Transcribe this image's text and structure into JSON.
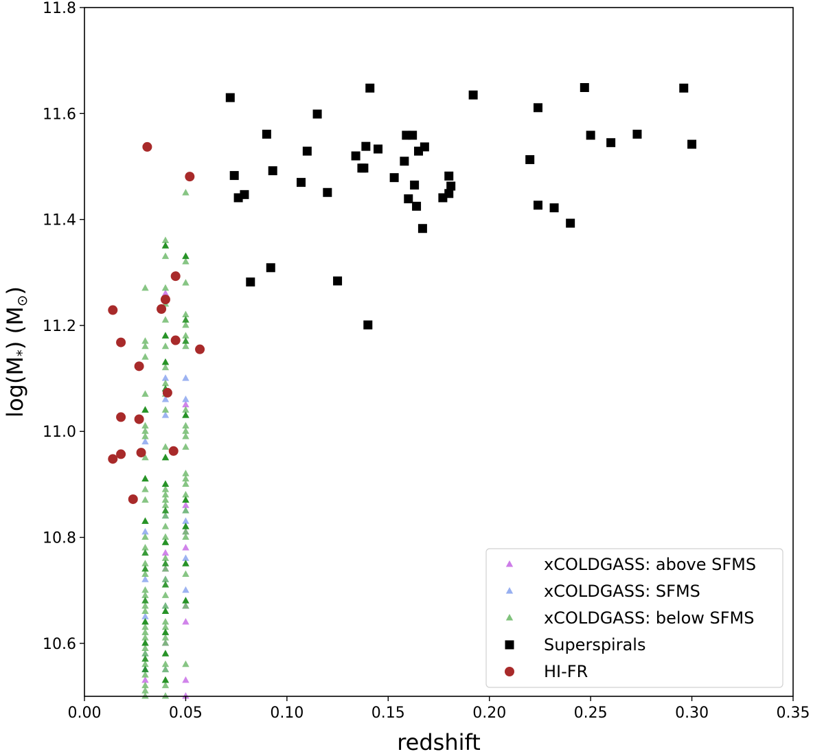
{
  "chart_data": {
    "type": "scatter",
    "xlabel": "redshift",
    "ylabel_parts": [
      "log(M",
      "*",
      ") (M",
      "⊙",
      ")"
    ],
    "xlim": [
      0.0,
      0.35
    ],
    "ylim": [
      10.5,
      11.8
    ],
    "xticks": [
      "0.00",
      "0.05",
      "0.10",
      "0.15",
      "0.20",
      "0.25",
      "0.30",
      "0.35"
    ],
    "yticks": [
      "10.6",
      "10.8",
      "11.0",
      "11.2",
      "11.4",
      "11.6",
      "11.8"
    ],
    "legend_position": "lower-right",
    "colors": {
      "above": "#c86ee6",
      "sfms": "#8ca6ee",
      "below_light": "#72bb6e",
      "below_dark": "#168a16",
      "superspirals": "#000000",
      "hifr": "#a82a2a"
    },
    "series": [
      {
        "name": "xCOLDGASS: above SFMS",
        "marker": "triangle",
        "color": "#c86ee6",
        "points": [
          [
            0.04,
            11.26
          ],
          [
            0.05,
            11.05
          ],
          [
            0.05,
            10.86
          ],
          [
            0.05,
            10.78
          ],
          [
            0.05,
            10.67
          ],
          [
            0.05,
            10.64
          ],
          [
            0.05,
            10.53
          ],
          [
            0.05,
            10.5
          ],
          [
            0.04,
            10.77
          ],
          [
            0.04,
            10.6
          ],
          [
            0.03,
            10.53
          ],
          [
            0.04,
            10.74
          ],
          [
            0.05,
            10.81
          ]
        ]
      },
      {
        "name": "xCOLDGASS: SFMS",
        "marker": "triangle",
        "color": "#8ca6ee",
        "points": [
          [
            0.05,
            11.1
          ],
          [
            0.04,
            11.1
          ],
          [
            0.04,
            11.03
          ],
          [
            0.03,
            10.98
          ],
          [
            0.05,
            10.85
          ],
          [
            0.05,
            10.83
          ],
          [
            0.05,
            10.76
          ],
          [
            0.05,
            10.7
          ],
          [
            0.04,
            10.72
          ],
          [
            0.04,
            10.67
          ],
          [
            0.04,
            10.55
          ],
          [
            0.03,
            10.81
          ],
          [
            0.03,
            10.72
          ],
          [
            0.03,
            10.58
          ],
          [
            0.03,
            10.55
          ],
          [
            0.05,
            11.06
          ],
          [
            0.04,
            11.06
          ],
          [
            0.04,
            10.84
          ],
          [
            0.03,
            10.65
          ]
        ]
      },
      {
        "name": "xCOLDGASS: below SFMS",
        "marker": "triangle",
        "color": "#72bb6e",
        "points": [
          [
            0.05,
            11.45
          ],
          [
            0.04,
            11.36
          ],
          [
            0.04,
            11.35
          ],
          [
            0.04,
            11.33
          ],
          [
            0.05,
            11.33
          ],
          [
            0.05,
            11.32
          ],
          [
            0.05,
            11.28
          ],
          [
            0.03,
            11.27
          ],
          [
            0.04,
            11.27
          ],
          [
            0.04,
            11.24
          ],
          [
            0.05,
            11.22
          ],
          [
            0.05,
            11.2
          ],
          [
            0.04,
            11.21
          ],
          [
            0.05,
            11.18
          ],
          [
            0.04,
            11.18
          ],
          [
            0.03,
            11.17
          ],
          [
            0.03,
            11.16
          ],
          [
            0.04,
            11.16
          ],
          [
            0.05,
            11.16
          ],
          [
            0.03,
            11.14
          ],
          [
            0.04,
            11.13
          ],
          [
            0.04,
            11.12
          ],
          [
            0.04,
            11.09
          ],
          [
            0.04,
            11.07
          ],
          [
            0.03,
            11.07
          ],
          [
            0.05,
            11.04
          ],
          [
            0.03,
            11.04
          ],
          [
            0.04,
            11.04
          ],
          [
            0.05,
            11.03
          ],
          [
            0.03,
            11.01
          ],
          [
            0.05,
            11.01
          ],
          [
            0.03,
            11.0
          ],
          [
            0.05,
            11.0
          ],
          [
            0.03,
            10.99
          ],
          [
            0.05,
            10.99
          ],
          [
            0.04,
            10.97
          ],
          [
            0.05,
            10.97
          ],
          [
            0.03,
            10.95
          ],
          [
            0.04,
            10.95
          ],
          [
            0.05,
            10.92
          ],
          [
            0.05,
            10.91
          ],
          [
            0.05,
            10.9
          ],
          [
            0.03,
            10.91
          ],
          [
            0.04,
            10.9
          ],
          [
            0.04,
            10.89
          ],
          [
            0.05,
            10.88
          ],
          [
            0.03,
            10.89
          ],
          [
            0.04,
            10.88
          ],
          [
            0.05,
            10.87
          ],
          [
            0.04,
            10.87
          ],
          [
            0.03,
            10.87
          ],
          [
            0.04,
            10.86
          ],
          [
            0.05,
            10.85
          ],
          [
            0.04,
            10.84
          ],
          [
            0.05,
            10.82
          ],
          [
            0.04,
            10.82
          ],
          [
            0.05,
            10.81
          ],
          [
            0.03,
            10.83
          ],
          [
            0.04,
            10.8
          ],
          [
            0.03,
            10.8
          ],
          [
            0.05,
            10.8
          ],
          [
            0.04,
            10.79
          ],
          [
            0.03,
            10.78
          ],
          [
            0.05,
            10.75
          ],
          [
            0.04,
            10.76
          ],
          [
            0.03,
            10.75
          ],
          [
            0.04,
            10.74
          ],
          [
            0.05,
            10.73
          ],
          [
            0.03,
            10.73
          ],
          [
            0.04,
            10.72
          ],
          [
            0.03,
            10.7
          ],
          [
            0.04,
            10.69
          ],
          [
            0.03,
            10.69
          ],
          [
            0.05,
            10.68
          ],
          [
            0.04,
            10.67
          ],
          [
            0.03,
            10.67
          ],
          [
            0.04,
            10.66
          ],
          [
            0.03,
            10.66
          ],
          [
            0.05,
            10.67
          ],
          [
            0.03,
            10.64
          ],
          [
            0.04,
            10.64
          ],
          [
            0.03,
            10.63
          ],
          [
            0.04,
            10.63
          ],
          [
            0.03,
            10.62
          ],
          [
            0.04,
            10.62
          ],
          [
            0.03,
            10.61
          ],
          [
            0.04,
            10.61
          ],
          [
            0.03,
            10.6
          ],
          [
            0.04,
            10.6
          ],
          [
            0.03,
            10.59
          ],
          [
            0.04,
            10.58
          ],
          [
            0.03,
            10.58
          ],
          [
            0.05,
            10.56
          ],
          [
            0.04,
            10.56
          ],
          [
            0.03,
            10.56
          ],
          [
            0.04,
            10.55
          ],
          [
            0.03,
            10.54
          ],
          [
            0.04,
            10.53
          ],
          [
            0.03,
            10.52
          ],
          [
            0.04,
            10.52
          ],
          [
            0.03,
            10.51
          ],
          [
            0.04,
            10.5
          ],
          [
            0.03,
            10.5
          ]
        ]
      },
      {
        "name": "xCOLDGASS: below SFMS (dark)",
        "legend": false,
        "marker": "triangle",
        "color": "#168a16",
        "points": [
          [
            0.05,
            11.33
          ],
          [
            0.04,
            11.35
          ],
          [
            0.05,
            11.21
          ],
          [
            0.04,
            11.18
          ],
          [
            0.05,
            11.17
          ],
          [
            0.04,
            11.13
          ],
          [
            0.04,
            11.08
          ],
          [
            0.03,
            11.04
          ],
          [
            0.05,
            11.03
          ],
          [
            0.04,
            10.95
          ],
          [
            0.03,
            10.91
          ],
          [
            0.04,
            10.9
          ],
          [
            0.05,
            10.87
          ],
          [
            0.04,
            10.85
          ],
          [
            0.03,
            10.83
          ],
          [
            0.05,
            10.82
          ],
          [
            0.04,
            10.79
          ],
          [
            0.03,
            10.77
          ],
          [
            0.04,
            10.75
          ],
          [
            0.05,
            10.75
          ],
          [
            0.03,
            10.74
          ],
          [
            0.04,
            10.71
          ],
          [
            0.03,
            10.68
          ],
          [
            0.05,
            10.68
          ],
          [
            0.04,
            10.66
          ],
          [
            0.03,
            10.64
          ],
          [
            0.04,
            10.62
          ],
          [
            0.03,
            10.6
          ],
          [
            0.04,
            10.58
          ],
          [
            0.03,
            10.57
          ],
          [
            0.03,
            10.55
          ],
          [
            0.04,
            10.53
          ]
        ]
      },
      {
        "name": "Superspirals",
        "marker": "square",
        "color": "#000000",
        "points": [
          [
            0.072,
            11.63
          ],
          [
            0.074,
            11.483
          ],
          [
            0.076,
            11.441
          ],
          [
            0.079,
            11.447
          ],
          [
            0.082,
            11.282
          ],
          [
            0.09,
            11.561
          ],
          [
            0.092,
            11.309
          ],
          [
            0.093,
            11.492
          ],
          [
            0.107,
            11.47
          ],
          [
            0.11,
            11.529
          ],
          [
            0.115,
            11.599
          ],
          [
            0.12,
            11.451
          ],
          [
            0.125,
            11.284
          ],
          [
            0.134,
            11.52
          ],
          [
            0.137,
            11.497
          ],
          [
            0.138,
            11.497
          ],
          [
            0.139,
            11.538
          ],
          [
            0.14,
            11.201
          ],
          [
            0.141,
            11.648
          ],
          [
            0.145,
            11.533
          ],
          [
            0.153,
            11.479
          ],
          [
            0.158,
            11.51
          ],
          [
            0.159,
            11.559
          ],
          [
            0.16,
            11.439
          ],
          [
            0.162,
            11.559
          ],
          [
            0.163,
            11.465
          ],
          [
            0.164,
            11.425
          ],
          [
            0.165,
            11.529
          ],
          [
            0.167,
            11.383
          ],
          [
            0.168,
            11.537
          ],
          [
            0.177,
            11.441
          ],
          [
            0.18,
            11.482
          ],
          [
            0.18,
            11.449
          ],
          [
            0.181,
            11.463
          ],
          [
            0.192,
            11.635
          ],
          [
            0.22,
            11.513
          ],
          [
            0.224,
            11.427
          ],
          [
            0.224,
            11.611
          ],
          [
            0.232,
            11.422
          ],
          [
            0.24,
            11.393
          ],
          [
            0.247,
            11.649
          ],
          [
            0.25,
            11.559
          ],
          [
            0.26,
            11.545
          ],
          [
            0.273,
            11.561
          ],
          [
            0.296,
            11.648
          ],
          [
            0.3,
            11.542
          ]
        ]
      },
      {
        "name": "HI-FR",
        "marker": "circle",
        "color": "#a82a2a",
        "points": [
          [
            0.014,
            10.948
          ],
          [
            0.014,
            11.229
          ],
          [
            0.018,
            11.168
          ],
          [
            0.018,
            11.027
          ],
          [
            0.018,
            10.957
          ],
          [
            0.024,
            10.872
          ],
          [
            0.027,
            11.123
          ],
          [
            0.027,
            11.023
          ],
          [
            0.028,
            10.96
          ],
          [
            0.031,
            11.537
          ],
          [
            0.038,
            11.231
          ],
          [
            0.04,
            11.249
          ],
          [
            0.041,
            11.073
          ],
          [
            0.044,
            10.963
          ],
          [
            0.045,
            11.172
          ],
          [
            0.045,
            11.293
          ],
          [
            0.052,
            11.481
          ],
          [
            0.057,
            11.155
          ]
        ]
      }
    ]
  }
}
